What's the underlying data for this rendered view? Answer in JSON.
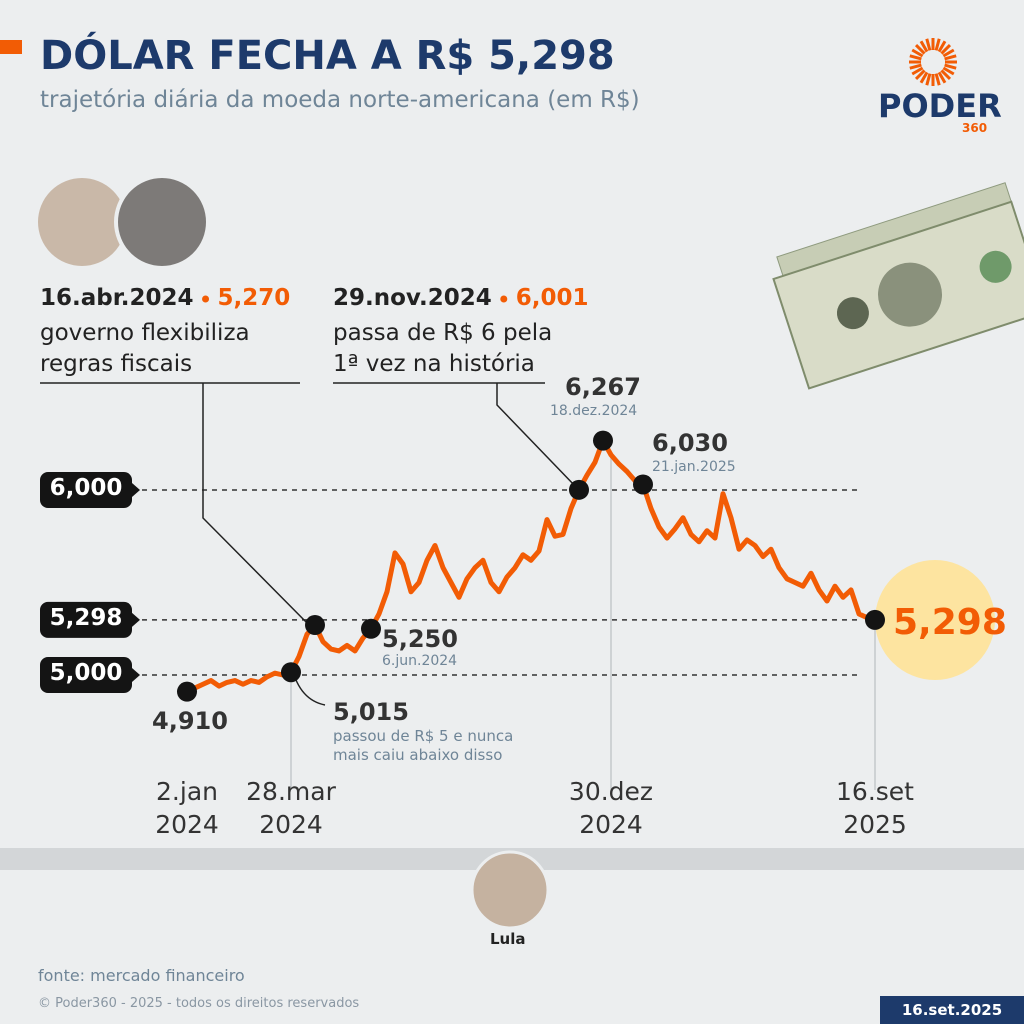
{
  "header": {
    "title": "DÓLAR FECHA A R$ 5,298",
    "subtitle": "trajetória diária da moeda norte-americana (em R$)"
  },
  "brand": {
    "name": "PODER",
    "suffix": "360"
  },
  "chart_data": {
    "type": "line",
    "categories": [
      "2.jan\n2024",
      null,
      null,
      null,
      null,
      null,
      null,
      null,
      null,
      null,
      null,
      null,
      null,
      "28.mar\n2024",
      null,
      null,
      null,
      null,
      null,
      null,
      null,
      null,
      null,
      null,
      null,
      null,
      null,
      null,
      null,
      null,
      null,
      null,
      null,
      null,
      null,
      null,
      null,
      null,
      null,
      null,
      null,
      null,
      null,
      null,
      null,
      null,
      null,
      null,
      null,
      null,
      null,
      null,
      null,
      "30.dez\n2024",
      null,
      null,
      null,
      null,
      null,
      null,
      null,
      null,
      null,
      null,
      null,
      null,
      null,
      null,
      null,
      null,
      null,
      null,
      null,
      null,
      null,
      null,
      null,
      null,
      null,
      null,
      null,
      null,
      null,
      null,
      null,
      null,
      "16.set\n2025"
    ],
    "series": [
      {
        "color": "#f25c05",
        "values": [
          4.91,
          4.93,
          4.95,
          4.97,
          4.94,
          4.96,
          4.97,
          4.95,
          4.97,
          4.96,
          4.99,
          5.01,
          5.0,
          5.015,
          5.1,
          5.22,
          5.27,
          5.18,
          5.14,
          5.13,
          5.16,
          5.13,
          5.2,
          5.25,
          5.33,
          5.45,
          5.66,
          5.6,
          5.45,
          5.5,
          5.62,
          5.7,
          5.58,
          5.5,
          5.42,
          5.52,
          5.58,
          5.62,
          5.5,
          5.45,
          5.53,
          5.58,
          5.65,
          5.62,
          5.67,
          5.84,
          5.75,
          5.76,
          5.9,
          6.001,
          6.08,
          6.15,
          6.267,
          6.19,
          6.14,
          6.1,
          6.05,
          6.03,
          5.9,
          5.8,
          5.74,
          5.79,
          5.85,
          5.76,
          5.72,
          5.78,
          5.74,
          5.98,
          5.85,
          5.68,
          5.73,
          5.7,
          5.64,
          5.68,
          5.58,
          5.52,
          5.5,
          5.48,
          5.55,
          5.46,
          5.4,
          5.48,
          5.42,
          5.46,
          5.33,
          5.31,
          5.298
        ],
        "value_labels": [
          "4,910",
          null,
          null,
          null,
          null,
          null,
          null,
          null,
          null,
          null,
          null,
          null,
          null,
          "5,015",
          null,
          null,
          "5,270",
          null,
          null,
          null,
          null,
          null,
          null,
          "5,250",
          null,
          null,
          null,
          null,
          null,
          null,
          null,
          null,
          null,
          null,
          null,
          null,
          null,
          null,
          null,
          null,
          null,
          null,
          null,
          null,
          null,
          null,
          null,
          null,
          null,
          "6,001",
          null,
          null,
          "6,267",
          null,
          null,
          null,
          null,
          "6,030",
          null,
          null,
          null,
          null,
          null,
          null,
          null,
          null,
          null,
          null,
          null,
          null,
          null,
          null,
          null,
          null,
          null,
          null,
          null,
          null,
          null,
          null,
          null,
          null,
          null,
          null,
          null,
          null,
          "5,298"
        ],
        "date_labels": [
          null,
          null,
          null,
          null,
          null,
          null,
          null,
          null,
          null,
          null,
          null,
          null,
          null,
          null,
          null,
          null,
          "16.abr.2024",
          null,
          null,
          null,
          null,
          null,
          null,
          "6.jun.2024",
          null,
          null,
          null,
          null,
          null,
          null,
          null,
          null,
          null,
          null,
          null,
          null,
          null,
          null,
          null,
          null,
          null,
          null,
          null,
          null,
          null,
          null,
          null,
          null,
          null,
          "29.nov.2024",
          null,
          null,
          "18.dez.2024",
          null,
          null,
          null,
          null,
          "21.jan.2025",
          null,
          null,
          null,
          null,
          null,
          null,
          null,
          null,
          null,
          null,
          null,
          null,
          null,
          null,
          null,
          null,
          null,
          null,
          null,
          null,
          null,
          null,
          null,
          null,
          null,
          null,
          null,
          null,
          null
        ],
        "notes": [
          null,
          null,
          null,
          null,
          null,
          null,
          null,
          null,
          null,
          null,
          null,
          null,
          null,
          "passou de R$ 5 e nunca\nmais caiu abaixo disso",
          null,
          null,
          "governo flexibiliza\nregras fiscais",
          null,
          null,
          null,
          null,
          null,
          null,
          null,
          null,
          null,
          null,
          null,
          null,
          null,
          null,
          null,
          null,
          null,
          null,
          null,
          null,
          null,
          null,
          null,
          null,
          null,
          null,
          null,
          null,
          null,
          null,
          null,
          null,
          "passa de R$ 6 pela\n1ª vez na história",
          null,
          null,
          null,
          null,
          null,
          null,
          null,
          null,
          null,
          null,
          null,
          null,
          null,
          null,
          null,
          null,
          null,
          null,
          null,
          null,
          null,
          null,
          null,
          null,
          null,
          null,
          null,
          null,
          null,
          null,
          null,
          null,
          null,
          null,
          null,
          null,
          null,
          null,
          null,
          null,
          null
        ]
      }
    ],
    "ylim": [
      4.7,
      6.5
    ],
    "yticks": [
      {
        "value": 6.0,
        "label": "6,000"
      },
      {
        "value": 5.298,
        "label": "5,298"
      },
      {
        "value": 5.0,
        "label": "5,000"
      }
    ]
  },
  "person": "Lula",
  "footer": {
    "source": "fonte: mercado financeiro",
    "copyright": "© Poder360 - 2025 - todos os direitos reservados",
    "date": "16.set.2025"
  }
}
